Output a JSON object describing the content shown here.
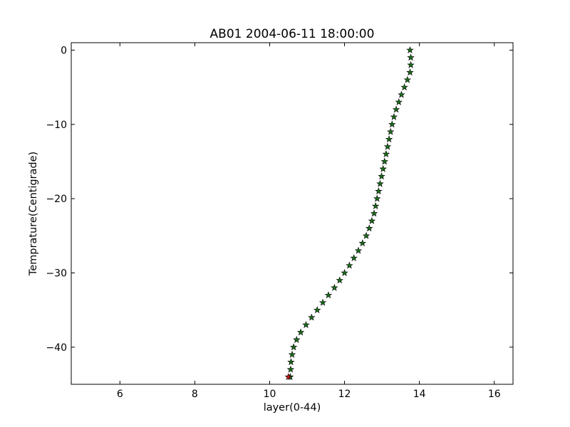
{
  "chart_data": {
    "type": "scatter",
    "title": "AB01 2004-06-11 18:00:00",
    "xlabel": "layer(0-44)",
    "ylabel": "Temprature(Centigrade)",
    "xlim": [
      4.7,
      16.5
    ],
    "ylim": [
      -45,
      1
    ],
    "xticks": [
      6,
      8,
      10,
      12,
      14,
      16
    ],
    "xtick_labels": [
      "6",
      "8",
      "10",
      "12",
      "14",
      "16"
    ],
    "yticks": [
      0,
      -10,
      -20,
      -30,
      -40
    ],
    "ytick_labels": [
      "0",
      "−10",
      "−20",
      "−30",
      "−40"
    ],
    "grid": false,
    "marker": "star",
    "series": [
      {
        "color": "#1a6e1a",
        "points": [
          [
            13.75,
            0
          ],
          [
            13.77,
            -1
          ],
          [
            13.77,
            -2
          ],
          [
            13.75,
            -3
          ],
          [
            13.68,
            -4
          ],
          [
            13.6,
            -5
          ],
          [
            13.52,
            -6
          ],
          [
            13.45,
            -7
          ],
          [
            13.38,
            -8
          ],
          [
            13.32,
            -9
          ],
          [
            13.27,
            -10
          ],
          [
            13.23,
            -11
          ],
          [
            13.19,
            -12
          ],
          [
            13.15,
            -13
          ],
          [
            13.11,
            -14
          ],
          [
            13.07,
            -15
          ],
          [
            13.03,
            -16
          ],
          [
            12.99,
            -17
          ],
          [
            12.95,
            -18
          ],
          [
            12.91,
            -19
          ],
          [
            12.87,
            -20
          ],
          [
            12.83,
            -21
          ],
          [
            12.79,
            -22
          ],
          [
            12.73,
            -23
          ],
          [
            12.66,
            -24
          ],
          [
            12.58,
            -25
          ],
          [
            12.48,
            -26
          ],
          [
            12.37,
            -27
          ],
          [
            12.25,
            -28
          ],
          [
            12.13,
            -29
          ],
          [
            12.0,
            -30
          ],
          [
            11.87,
            -31
          ],
          [
            11.73,
            -32
          ],
          [
            11.57,
            -33
          ],
          [
            11.42,
            -34
          ],
          [
            11.27,
            -35
          ],
          [
            11.12,
            -36
          ],
          [
            10.97,
            -37
          ],
          [
            10.83,
            -38
          ],
          [
            10.72,
            -39
          ],
          [
            10.64,
            -40
          ],
          [
            10.6,
            -41
          ],
          [
            10.57,
            -42
          ],
          [
            10.56,
            -43
          ],
          [
            10.55,
            -44
          ]
        ]
      },
      {
        "color": "#cc1111",
        "points": [
          [
            10.5,
            -44
          ]
        ]
      }
    ]
  }
}
